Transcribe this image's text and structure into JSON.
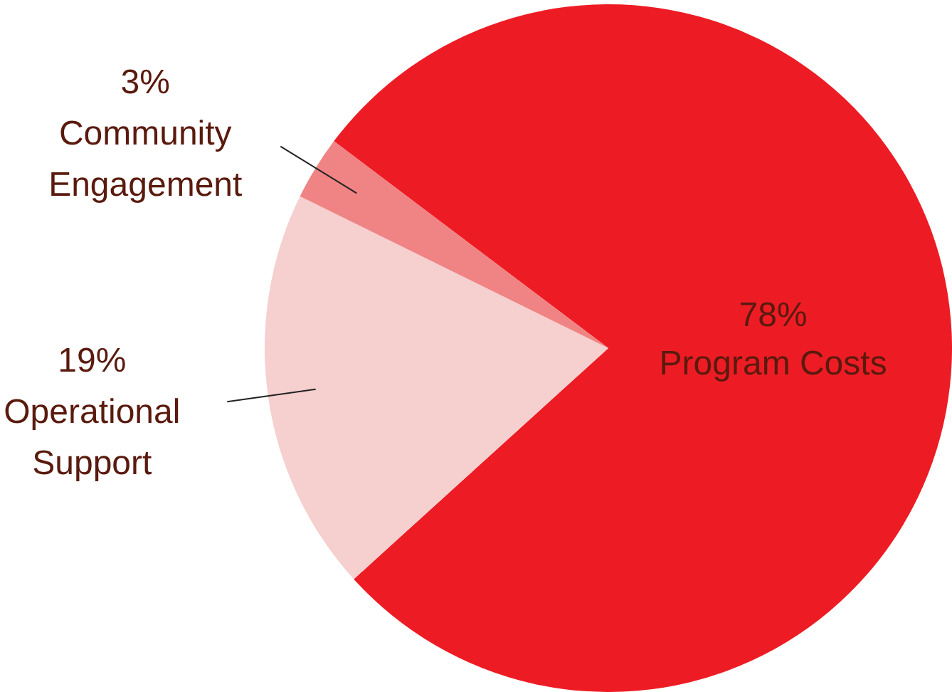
{
  "chart_data": {
    "type": "pie",
    "categories": [
      "Program Costs",
      "Operational Support",
      "Community Engagement"
    ],
    "values": [
      78,
      19,
      3
    ],
    "colors": [
      "#ed1c24",
      "#f6cfcf",
      "#f08383"
    ],
    "value_labels": [
      "78%",
      "19%",
      "3%"
    ],
    "legend": false
  }
}
